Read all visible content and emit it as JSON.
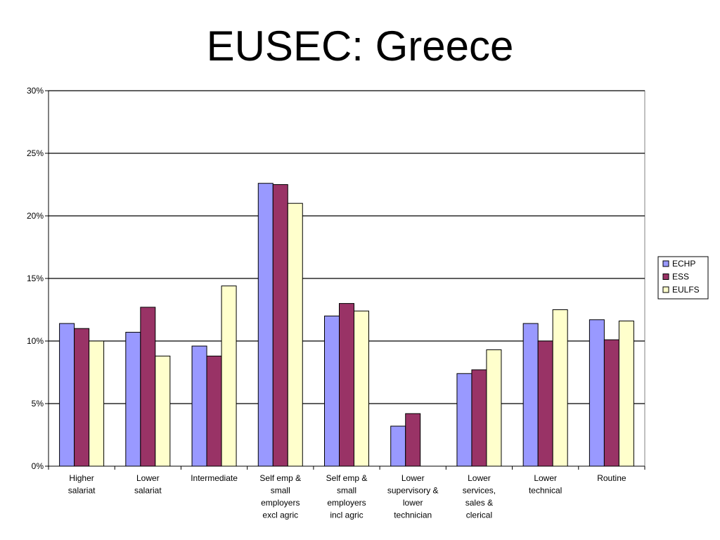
{
  "slide": {
    "title": "EUSEC: Greece"
  },
  "chart_data": {
    "type": "bar",
    "title": "",
    "xlabel": "",
    "ylabel": "",
    "ylim": [
      0,
      30
    ],
    "y_ticks": [
      "0%",
      "5%",
      "10%",
      "15%",
      "20%",
      "25%",
      "30%"
    ],
    "y_tick_values": [
      0,
      5,
      10,
      15,
      20,
      25,
      30
    ],
    "grid": true,
    "legend_position": "right",
    "categories": [
      [
        "Higher",
        "salariat"
      ],
      [
        "Lower",
        "salariat"
      ],
      [
        "Intermediate"
      ],
      [
        "Self emp &",
        "small",
        "employers",
        "excl agric"
      ],
      [
        "Self emp &",
        "small",
        "employers",
        "incl agric"
      ],
      [
        "Lower",
        "supervisory &",
        "lower",
        "technician"
      ],
      [
        "Lower",
        "services,",
        "sales &",
        "clerical"
      ],
      [
        "Lower",
        "technical"
      ],
      [
        "Routine"
      ]
    ],
    "series": [
      {
        "name": "ECHP",
        "color": "#9999FF",
        "values": [
          11.4,
          10.7,
          9.6,
          22.6,
          12.0,
          3.2,
          7.4,
          11.4,
          11.7
        ]
      },
      {
        "name": "ESS",
        "color": "#993366",
        "values": [
          11.0,
          12.7,
          8.8,
          22.5,
          13.0,
          4.2,
          7.7,
          10.0,
          10.1
        ]
      },
      {
        "name": "EULFS",
        "color": "#FFFFCC",
        "values": [
          10.0,
          8.8,
          14.4,
          21.0,
          12.4,
          null,
          9.3,
          12.5,
          11.6
        ]
      }
    ]
  }
}
